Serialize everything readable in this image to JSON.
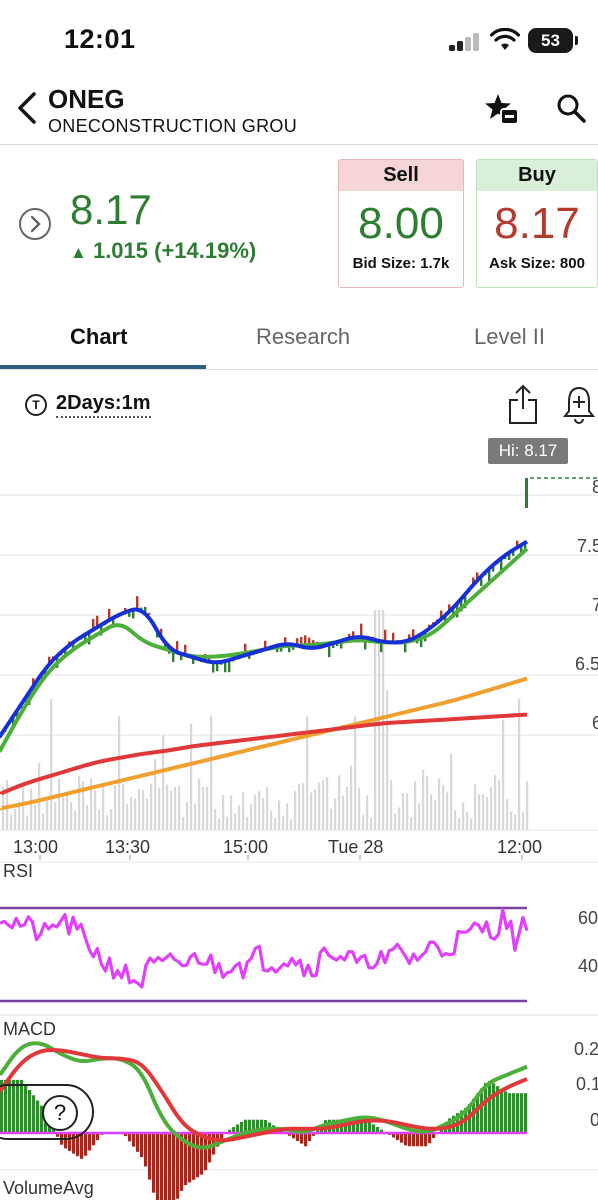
{
  "status": {
    "time": "12:01",
    "battery": "53"
  },
  "header": {
    "ticker": "ONEG",
    "company": "ONECONSTRUCTION GROU"
  },
  "quote": {
    "last": "8.17",
    "change": "1.015 (+14.19%)",
    "sell": {
      "label": "Sell",
      "price": "8.00",
      "size": "Bid Size: 1.7k"
    },
    "buy": {
      "label": "Buy",
      "price": "8.17",
      "size": "Ask Size: 800"
    }
  },
  "tabs": [
    {
      "label": "Chart",
      "active": true
    },
    {
      "label": "Research",
      "active": false
    },
    {
      "label": "Level II",
      "active": false
    }
  ],
  "chart_toolbar": {
    "interval": "2Days:1m",
    "interval_icon": "T"
  },
  "colors": {
    "up": "#2e7d32",
    "down": "#b53a2e",
    "ma_fast": "#1530d6",
    "ma_mid": "#4caf3a",
    "ma_slow_red": "#e03838",
    "ma_slow_orange": "#f0a030",
    "rsi": "#e040fb",
    "band": "#7b3fa0"
  },
  "chart_data": [
    {
      "type": "line",
      "hi_label": "Hi: 8.17",
      "y_tick_labels": [
        "8",
        "7.5",
        "7",
        "6.5",
        "6"
      ],
      "x_tick_labels": [
        "13:00",
        "13:30",
        "15:00",
        "Tue 28",
        "12:00"
      ],
      "series": [
        {
          "values": [
            6.35,
            6.6,
            6.85,
            7.0,
            7.1,
            7.2,
            7.25,
            6.95,
            6.9,
            6.85,
            6.9,
            6.95,
            7.0,
            6.95,
            7.0,
            7.05,
            7.0,
            7.0,
            7.1,
            7.25,
            7.45,
            7.6,
            7.7
          ]
        },
        {
          "values": [
            6.25,
            6.55,
            6.8,
            6.95,
            7.05,
            7.15,
            7.0,
            6.95,
            6.9,
            6.9,
            6.92,
            6.95,
            6.98,
            6.98,
            7.0,
            7.02,
            7.0,
            7.0,
            7.05,
            7.2,
            7.35,
            7.5,
            7.65
          ]
        },
        {
          "values": [
            5.95,
            6.02,
            6.07,
            6.12,
            6.17,
            6.2,
            6.23,
            6.25,
            6.28,
            6.3,
            6.32,
            6.34,
            6.36,
            6.38,
            6.4,
            6.42,
            6.44,
            6.45,
            6.46,
            6.47,
            6.48,
            6.49,
            6.5
          ]
        },
        {
          "values": [
            5.85,
            5.88,
            5.92,
            5.96,
            6.0,
            6.04,
            6.08,
            6.12,
            6.16,
            6.2,
            6.24,
            6.28,
            6.32,
            6.36,
            6.4,
            6.44,
            6.48,
            6.52,
            6.56,
            6.6,
            6.65,
            6.7,
            6.75
          ]
        }
      ],
      "ylim": [
        5.7,
        8.3
      ]
    },
    {
      "type": "line",
      "title": "RSI",
      "y_tick_labels": [
        "60",
        "40"
      ],
      "bands": [
        70,
        30
      ],
      "series": [
        {
          "values": [
            68,
            64,
            63,
            60,
            58,
            65,
            62,
            58,
            52,
            46,
            44,
            40,
            38,
            46,
            44,
            48,
            45,
            50,
            46,
            44,
            48,
            44,
            50,
            46,
            48,
            50,
            44,
            46,
            52,
            50,
            48,
            44,
            50,
            46,
            52,
            48,
            50,
            54,
            52,
            56,
            58,
            62,
            60,
            66,
            56,
            64
          ]
        }
      ],
      "ylim": [
        20,
        80
      ]
    },
    {
      "type": "line",
      "title": "MACD",
      "y_tick_labels": [
        "0.2",
        "0.1",
        "0"
      ],
      "series": [
        {
          "values": [
            0.14,
            0.21,
            0.22,
            0.19,
            0.17,
            0.18,
            0.18,
            0.15,
            0.03,
            -0.02,
            -0.04,
            -0.02,
            0.0,
            0.01,
            0.01,
            0.0,
            0.02,
            0.03,
            0.04,
            0.03,
            0.01,
            0.0,
            0.02,
            0.05,
            0.12,
            0.14,
            0.16
          ]
        },
        {
          "values": [
            0.1,
            0.17,
            0.2,
            0.2,
            0.19,
            0.18,
            0.18,
            0.17,
            0.1,
            0.02,
            -0.01,
            -0.02,
            -0.01,
            0.0,
            0.01,
            0.01,
            0.01,
            0.02,
            0.03,
            0.03,
            0.02,
            0.01,
            0.01,
            0.03,
            0.08,
            0.11,
            0.13
          ]
        }
      ],
      "ylim": [
        -0.08,
        0.25
      ]
    },
    {
      "type": "line",
      "title": "VolumeAvg"
    }
  ]
}
